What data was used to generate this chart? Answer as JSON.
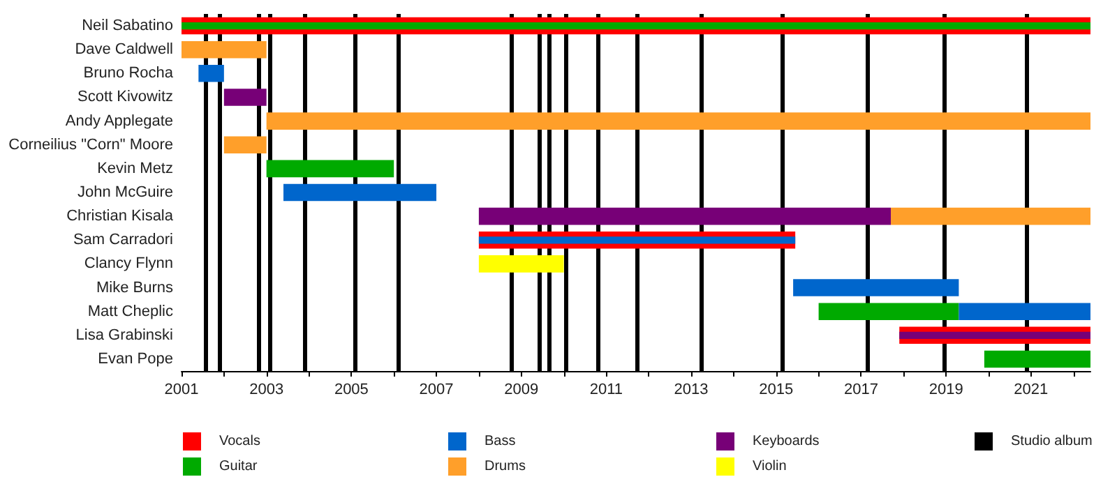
{
  "chart_data": {
    "type": "bar",
    "orientation": "horizontal",
    "legend": "bottom",
    "categories": [
      "Neil Sabatino",
      "Dave Caldwell",
      "Bruno Rocha",
      "Scott Kivowitz",
      "Andy Applegate",
      "Corneilius \"Corn\" Moore",
      "Kevin Metz",
      "John McGuire",
      "Christian Kisala",
      "Sam Carradori",
      "Clancy Flynn",
      "Mike Burns",
      "Matt Cheplic",
      "Lisa Grabinski",
      "Evan Pope"
    ],
    "series": [
      {
        "name": "Vocals",
        "color": "#ff0000",
        "base": [
          2001,
          null,
          null,
          null,
          null,
          null,
          null,
          null,
          null,
          2008,
          null,
          null,
          null,
          2017.9,
          null
        ],
        "values": [
          21.4,
          null,
          null,
          null,
          null,
          null,
          null,
          null,
          null,
          7.45,
          null,
          null,
          null,
          4.5,
          null
        ]
      },
      {
        "name": "Guitar",
        "color": "#00aa00",
        "base": [
          2001,
          null,
          null,
          null,
          null,
          null,
          2003,
          null,
          null,
          null,
          null,
          null,
          2016,
          null,
          2019.9
        ],
        "values": [
          21.4,
          null,
          null,
          null,
          null,
          null,
          3.0,
          null,
          null,
          null,
          null,
          null,
          3.3,
          null,
          2.5
        ]
      },
      {
        "name": "Bass",
        "color": "#0066cc",
        "base": [
          null,
          null,
          2001.4,
          null,
          null,
          null,
          null,
          2003.4,
          null,
          2008,
          null,
          2015.4,
          2019.3,
          null,
          null
        ],
        "values": [
          null,
          null,
          0.6,
          null,
          null,
          null,
          null,
          3.6,
          null,
          7.45,
          null,
          3.9,
          3.1,
          null,
          null
        ]
      },
      {
        "name": "Drums",
        "color": "#ff9f2a",
        "base": [
          null,
          2001,
          null,
          null,
          2003,
          2002,
          null,
          null,
          2017.7,
          null,
          null,
          null,
          null,
          null,
          null
        ],
        "values": [
          null,
          2.0,
          null,
          null,
          19.4,
          1.0,
          null,
          null,
          4.7,
          null,
          null,
          null,
          null,
          null,
          null
        ]
      },
      {
        "name": "Keyboards",
        "color": "#770077",
        "base": [
          null,
          null,
          null,
          2002,
          null,
          null,
          null,
          null,
          2008,
          null,
          null,
          null,
          null,
          2017.9,
          null
        ],
        "values": [
          null,
          null,
          null,
          1.0,
          null,
          null,
          null,
          null,
          9.7,
          null,
          null,
          null,
          null,
          4.5,
          null
        ]
      },
      {
        "name": "Violin",
        "color": "#ffff00",
        "base": [
          null,
          null,
          null,
          null,
          null,
          null,
          null,
          null,
          null,
          null,
          2008,
          null,
          null,
          null,
          null
        ],
        "values": [
          null,
          null,
          null,
          null,
          null,
          null,
          null,
          null,
          null,
          null,
          2.0,
          null,
          null,
          null,
          null
        ]
      }
    ],
    "xlim": [
      2001,
      2022.4
    ],
    "xticks": [
      2001,
      {
        "value": 2002,
        "label": null
      },
      2003,
      {
        "value": 2004,
        "label": null
      },
      2005,
      {
        "value": 2006,
        "label": null
      },
      2007,
      {
        "value": 2008,
        "label": null
      },
      2009,
      {
        "value": 2010,
        "label": null
      },
      2011,
      {
        "value": 2012,
        "label": null
      },
      2013,
      {
        "value": 2014,
        "label": null
      },
      2015,
      {
        "value": 2016,
        "label": null
      },
      2017,
      {
        "value": 2018,
        "label": null
      },
      2019,
      {
        "value": 2020,
        "label": null
      },
      2021,
      {
        "value": 2022,
        "label": null
      }
    ],
    "ref_lines": [
      {
        "axis": "x",
        "value": 2001.56,
        "label": "Studio album",
        "color": "#000000"
      },
      {
        "axis": "x",
        "value": 2001.89,
        "color": "#000000"
      },
      {
        "axis": "x",
        "value": 2002.81,
        "color": "#000000"
      },
      {
        "axis": "x",
        "value": 2003.07,
        "color": "#000000"
      },
      {
        "axis": "x",
        "value": 2003.89,
        "color": "#000000"
      },
      {
        "axis": "x",
        "value": 2005.07,
        "color": "#000000"
      },
      {
        "axis": "x",
        "value": 2006.09,
        "color": "#000000"
      },
      {
        "axis": "x",
        "value": 2008.78,
        "color": "#000000"
      },
      {
        "axis": "x",
        "value": 2009.44,
        "color": "#000000"
      },
      {
        "axis": "x",
        "value": 2009.67,
        "color": "#000000"
      },
      {
        "axis": "x",
        "value": 2010.06,
        "color": "#000000"
      },
      {
        "axis": "x",
        "value": 2010.82,
        "color": "#000000"
      },
      {
        "axis": "x",
        "value": 2011.74,
        "color": "#000000"
      },
      {
        "axis": "x",
        "value": 2013.25,
        "color": "#000000"
      },
      {
        "axis": "x",
        "value": 2015.15,
        "color": "#000000"
      },
      {
        "axis": "x",
        "value": 2017.16,
        "color": "#000000"
      },
      {
        "axis": "x",
        "value": 2018.96,
        "color": "#000000"
      },
      {
        "axis": "x",
        "value": 2020.9,
        "color": "#000000"
      }
    ]
  }
}
